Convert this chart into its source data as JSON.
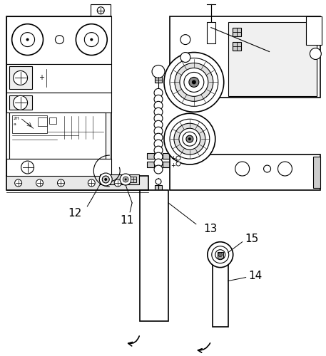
{
  "bg_color": "#ffffff",
  "lc": "#000000",
  "label_fontsize": 11,
  "fig_width": 4.57,
  "fig_height": 5.0,
  "dpi": 100
}
